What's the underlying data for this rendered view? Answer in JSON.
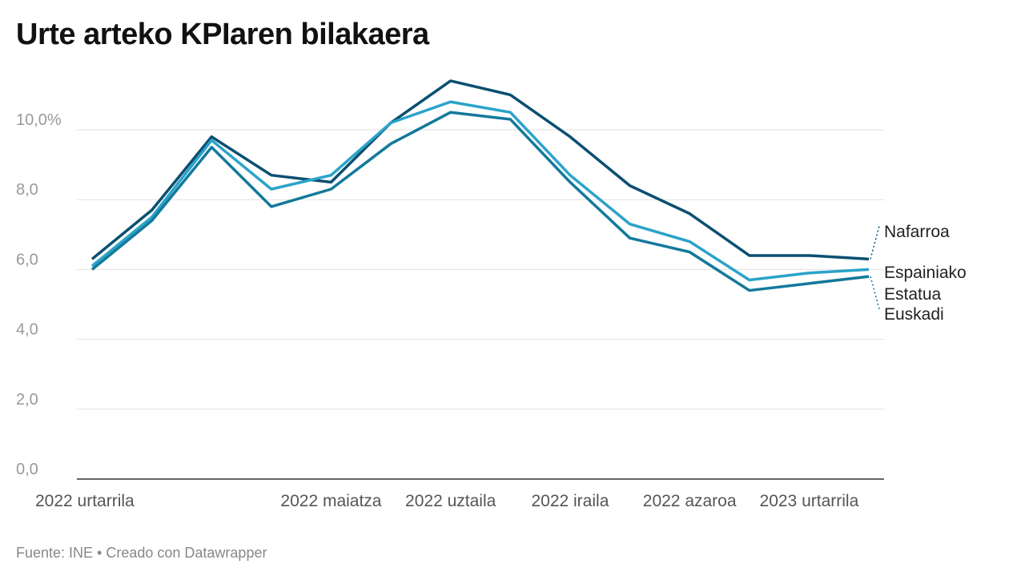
{
  "chart_data": {
    "type": "line",
    "title": "Urte arteko KPIaren bilakaera",
    "x": [
      "2022-01",
      "2022-02",
      "2022-03",
      "2022-04",
      "2022-05",
      "2022-06",
      "2022-07",
      "2022-08",
      "2022-09",
      "2022-10",
      "2022-11",
      "2022-12",
      "2023-01",
      "2023-02"
    ],
    "x_tick_labels": [
      {
        "index": 0,
        "label": "2022 urtarrila"
      },
      {
        "index": 4,
        "label": "2022 maiatza"
      },
      {
        "index": 6,
        "label": "2022 uztaila"
      },
      {
        "index": 8,
        "label": "2022 iraila"
      },
      {
        "index": 10,
        "label": "2022 azaroa"
      },
      {
        "index": 12,
        "label": "2023 urtarrila"
      }
    ],
    "y_ticks": [
      0,
      2,
      4,
      6,
      8,
      10
    ],
    "y_tick_labels": [
      "0,0",
      "2,0",
      "4,0",
      "6,0",
      "8,0",
      "10,0%"
    ],
    "ylim": [
      0,
      11.6
    ],
    "grid": true,
    "series": [
      {
        "name": "Nafarroa",
        "color": "#0b4f71",
        "values": [
          6.3,
          7.7,
          9.8,
          8.7,
          8.5,
          10.2,
          11.4,
          11.0,
          9.8,
          8.4,
          7.6,
          6.4,
          6.4,
          6.3
        ]
      },
      {
        "name": "Espainiako Estatua",
        "color": "#2ba3c9",
        "values": [
          6.1,
          7.5,
          9.7,
          8.3,
          8.7,
          10.2,
          10.8,
          10.5,
          8.7,
          7.3,
          6.8,
          5.7,
          5.9,
          6.0
        ]
      },
      {
        "name": "Euskadi",
        "color": "#13799b",
        "values": [
          6.0,
          7.4,
          9.5,
          7.8,
          8.3,
          9.6,
          10.5,
          10.3,
          8.5,
          6.9,
          6.5,
          5.4,
          5.6,
          5.8
        ]
      }
    ],
    "series_labels": [
      "Nafarroa",
      "Espainiako",
      "Estatua",
      "Euskadi"
    ]
  },
  "footer": "Fuente: INE • Creado con Datawrapper"
}
